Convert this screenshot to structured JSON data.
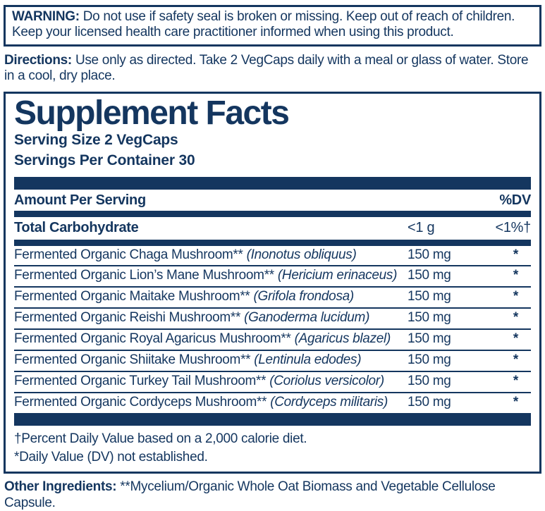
{
  "colors": {
    "navy": "#14365F",
    "background": "#FFFFFF"
  },
  "warning": {
    "label": "WARNING:",
    "text": "Do not use if safety seal is broken or missing. Keep out of reach of children. Keep your licensed health care practitioner informed when using this product."
  },
  "directions": {
    "label": "Directions:",
    "text": "Use only as directed. Take 2 VegCaps daily with a meal or glass of water. Store in a cool, dry place."
  },
  "facts": {
    "title": "Supplement Facts",
    "serving_size": "Serving Size 2 VegCaps",
    "servings_per_container": "Servings Per Container 30",
    "header": {
      "amount_label": "Amount Per Serving",
      "dv_label": "%DV"
    },
    "carbohydrate": {
      "name": "Total Carbohydrate",
      "amount": "<1 g",
      "dv": "<1%†"
    },
    "ingredients": [
      {
        "name": "Fermented Organic Chaga Mushroom**",
        "latin": "(Inonotus obliquus)",
        "amount": "150 mg",
        "dv": "*"
      },
      {
        "name": "Fermented Organic Lion’s Mane Mushroom**",
        "latin": "(Hericium erinaceus)",
        "amount": "150 mg",
        "dv": "*"
      },
      {
        "name": "Fermented Organic Maitake Mushroom**",
        "latin": "(Grifola frondosa)",
        "amount": "150 mg",
        "dv": "*"
      },
      {
        "name": "Fermented Organic Reishi Mushroom**",
        "latin": "(Ganoderma lucidum)",
        "amount": "150 mg",
        "dv": "*"
      },
      {
        "name": "Fermented Organic Royal Agaricus Mushroom**",
        "latin": "(Agaricus blazel)",
        "amount": "150 mg",
        "dv": "*"
      },
      {
        "name": "Fermented Organic Shiitake Mushroom**",
        "latin": "(Lentinula edodes)",
        "amount": "150 mg",
        "dv": "*"
      },
      {
        "name": "Fermented Organic Turkey Tail Mushroom**",
        "latin": "(Coriolus versicolor)",
        "amount": "150 mg",
        "dv": "*"
      },
      {
        "name": "Fermented Organic Cordyceps Mushroom**",
        "latin": "(Cordyceps militaris)",
        "amount": "150 mg",
        "dv": "*"
      }
    ],
    "footnotes": [
      "†Percent Daily Value based on a 2,000 calorie diet.",
      "*Daily Value (DV) not established."
    ]
  },
  "other_ingredients": {
    "label": "Other Ingredients:",
    "text": "**Mycelium/Organic Whole Oat Biomass and Vegetable Cellulose Capsule."
  }
}
